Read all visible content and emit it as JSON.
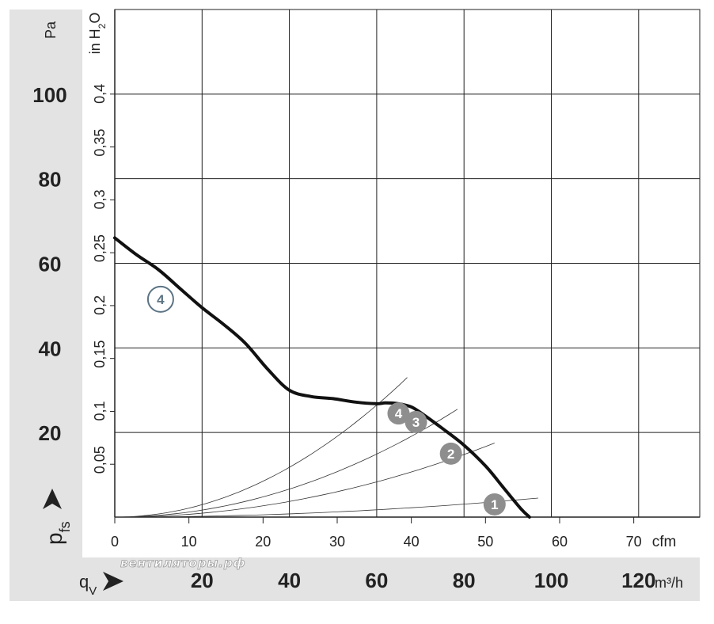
{
  "chart_data": {
    "type": "line",
    "title": "",
    "x_axis_primary": {
      "label": "q",
      "label_sub": "V",
      "unit": "m³/h",
      "ticks": [
        20,
        40,
        60,
        80,
        100,
        120
      ],
      "range": [
        0,
        134
      ]
    },
    "x_axis_secondary": {
      "unit": "cfm",
      "ticks": [
        0,
        10,
        20,
        30,
        40,
        50,
        60,
        70
      ],
      "range": [
        0,
        78.9
      ]
    },
    "y_axis_primary": {
      "label": "p",
      "label_sub": "fs",
      "unit": "Pa",
      "ticks": [
        20,
        40,
        60,
        80,
        100
      ],
      "range": [
        0,
        120
      ]
    },
    "y_axis_secondary": {
      "unit_prefix": "in H",
      "unit_sub": "2",
      "unit_suffix": "O",
      "ticks": [
        "0,05",
        "0,1",
        "0,15",
        "0,2",
        "0,25",
        "0,3",
        "0,35",
        "0,4"
      ],
      "tick_values": [
        0.05,
        0.1,
        0.15,
        0.2,
        0.25,
        0.3,
        0.35,
        0.4
      ],
      "range": [
        0,
        0.48
      ]
    },
    "grid": true,
    "series": [
      {
        "points": [
          [
            0,
            66
          ],
          [
            5,
            62
          ],
          [
            10,
            58.5
          ],
          [
            15,
            54
          ],
          [
            20,
            49.5
          ],
          [
            25,
            45.5
          ],
          [
            30,
            41
          ],
          [
            35,
            35
          ],
          [
            40,
            30
          ],
          [
            45,
            28.5
          ],
          [
            50,
            28
          ],
          [
            55,
            27.2
          ],
          [
            60,
            26.8
          ],
          [
            62,
            27
          ],
          [
            65,
            26.8
          ],
          [
            68,
            26
          ],
          [
            71,
            24
          ],
          [
            75,
            21
          ],
          [
            80,
            17
          ],
          [
            85,
            12
          ],
          [
            89,
            7
          ],
          [
            93,
            2
          ],
          [
            95,
            0
          ]
        ]
      }
    ],
    "system_curves": [
      {
        "marker": "1",
        "x_end": 97,
        "y_end": 4.5
      },
      {
        "marker": "2",
        "x_end": 87,
        "y_end": 17.5
      },
      {
        "marker": "3",
        "x_end": 78.5,
        "y_end": 25.5
      },
      {
        "marker": "4",
        "x_end": 67,
        "y_end": 33
      }
    ],
    "markers": [
      {
        "label": "4",
        "x": 10.5,
        "y": 51.5,
        "style": "outline"
      },
      {
        "label": "4",
        "x": 65,
        "y": 24.5,
        "style": "filled"
      },
      {
        "label": "3",
        "x": 69,
        "y": 22.5,
        "style": "filled"
      },
      {
        "label": "2",
        "x": 77,
        "y": 15,
        "style": "filled"
      },
      {
        "label": "1",
        "x": 87,
        "y": 3,
        "style": "filled"
      }
    ]
  },
  "watermark": "вентиляторы.рф",
  "colors": {
    "panel": "#e3e3e3",
    "grid": "#222222",
    "curve": "#111111",
    "system_curve": "#333333",
    "marker_fill": "#8e8e8e",
    "marker_outline": "#5c7485"
  }
}
